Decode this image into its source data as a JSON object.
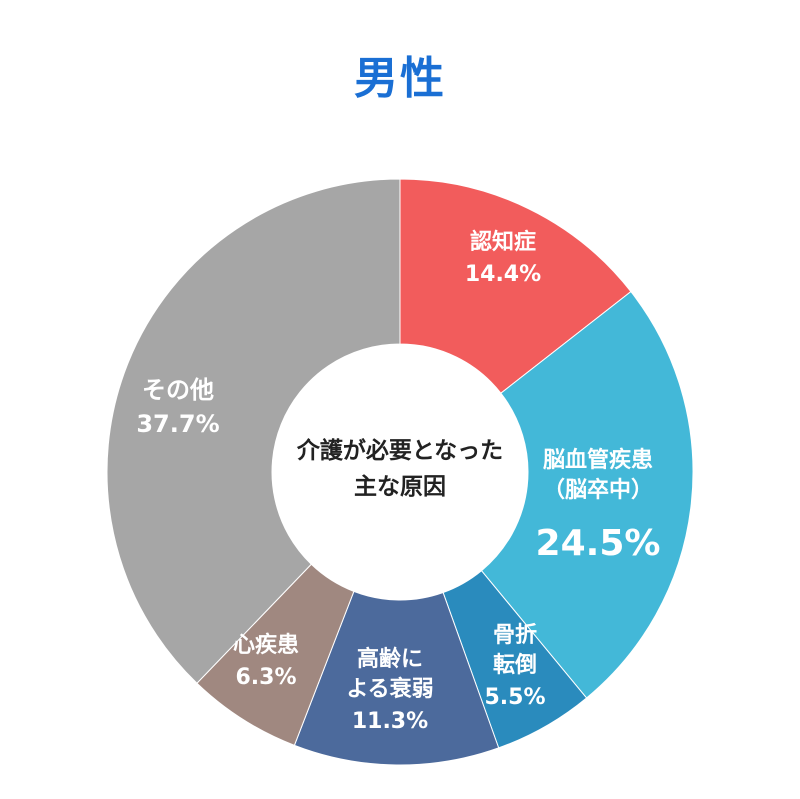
{
  "title": "男性",
  "chart_data": {
    "type": "pie",
    "style": "donut",
    "center_label": [
      "介護が必要となった",
      "主な原因"
    ],
    "slices": [
      {
        "label_lines": [
          "認知症"
        ],
        "value_text": "14.4%",
        "value": 14.4,
        "color": "#f25c5c"
      },
      {
        "label_lines": [
          "脳血管疾患",
          "（脳卒中）"
        ],
        "value_text": "24.5%",
        "value": 24.5,
        "color": "#43b8d8"
      },
      {
        "label_lines": [
          "骨折",
          "転倒"
        ],
        "value_text": "5.5%",
        "value": 5.5,
        "color": "#2a8bbd"
      },
      {
        "label_lines": [
          "高齢に",
          "よる衰弱"
        ],
        "value_text": "11.3%",
        "value": 11.3,
        "color": "#4c6a9c"
      },
      {
        "label_lines": [
          "心疾患"
        ],
        "value_text": "6.3%",
        "value": 6.3,
        "color": "#a08880"
      },
      {
        "label_lines": [
          "その他"
        ],
        "value_text": "37.7%",
        "value": 37.7,
        "color": "#a6a6a6"
      }
    ]
  }
}
